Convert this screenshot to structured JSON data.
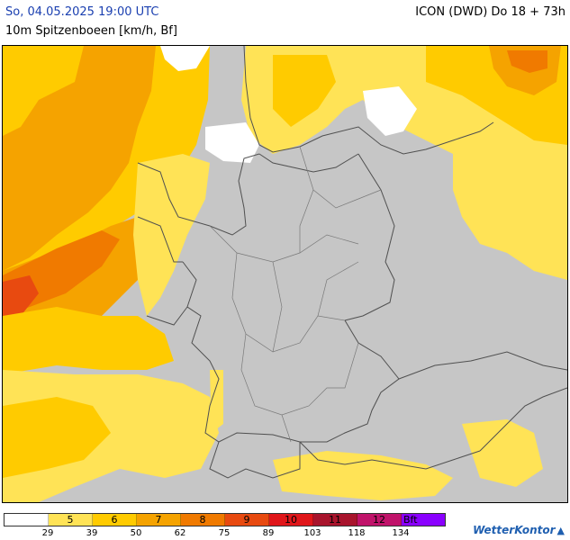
{
  "header": {
    "datetime": "So, 04.05.2025 19:00 UTC",
    "model": "ICON (DWD) Do 18 + 73h",
    "parameter": "10m Spitzenboeen [km/h, Bf]"
  },
  "legend": {
    "cells": [
      {
        "label": "",
        "color": "#ffffff"
      },
      {
        "label": "5",
        "color": "#ffe356"
      },
      {
        "label": "6",
        "color": "#ffcb00"
      },
      {
        "label": "7",
        "color": "#f5a300"
      },
      {
        "label": "8",
        "color": "#f07a00"
      },
      {
        "label": "9",
        "color": "#e84a10"
      },
      {
        "label": "10",
        "color": "#e0161a"
      },
      {
        "label": "11",
        "color": "#a8142c"
      },
      {
        "label": "12",
        "color": "#c0136a"
      },
      {
        "label": "Bft",
        "color": "#8a00ff"
      }
    ],
    "ticks": [
      "29",
      "39",
      "50",
      "62",
      "75",
      "89",
      "103",
      "118",
      "134"
    ]
  },
  "brand": {
    "name": "WetterKontor",
    "icon": "wetterkontor-logo-icon"
  },
  "map": {
    "land_color": "#c6c6c6",
    "border_color": "#505050",
    "region": "Germany and neighbouring countries"
  }
}
